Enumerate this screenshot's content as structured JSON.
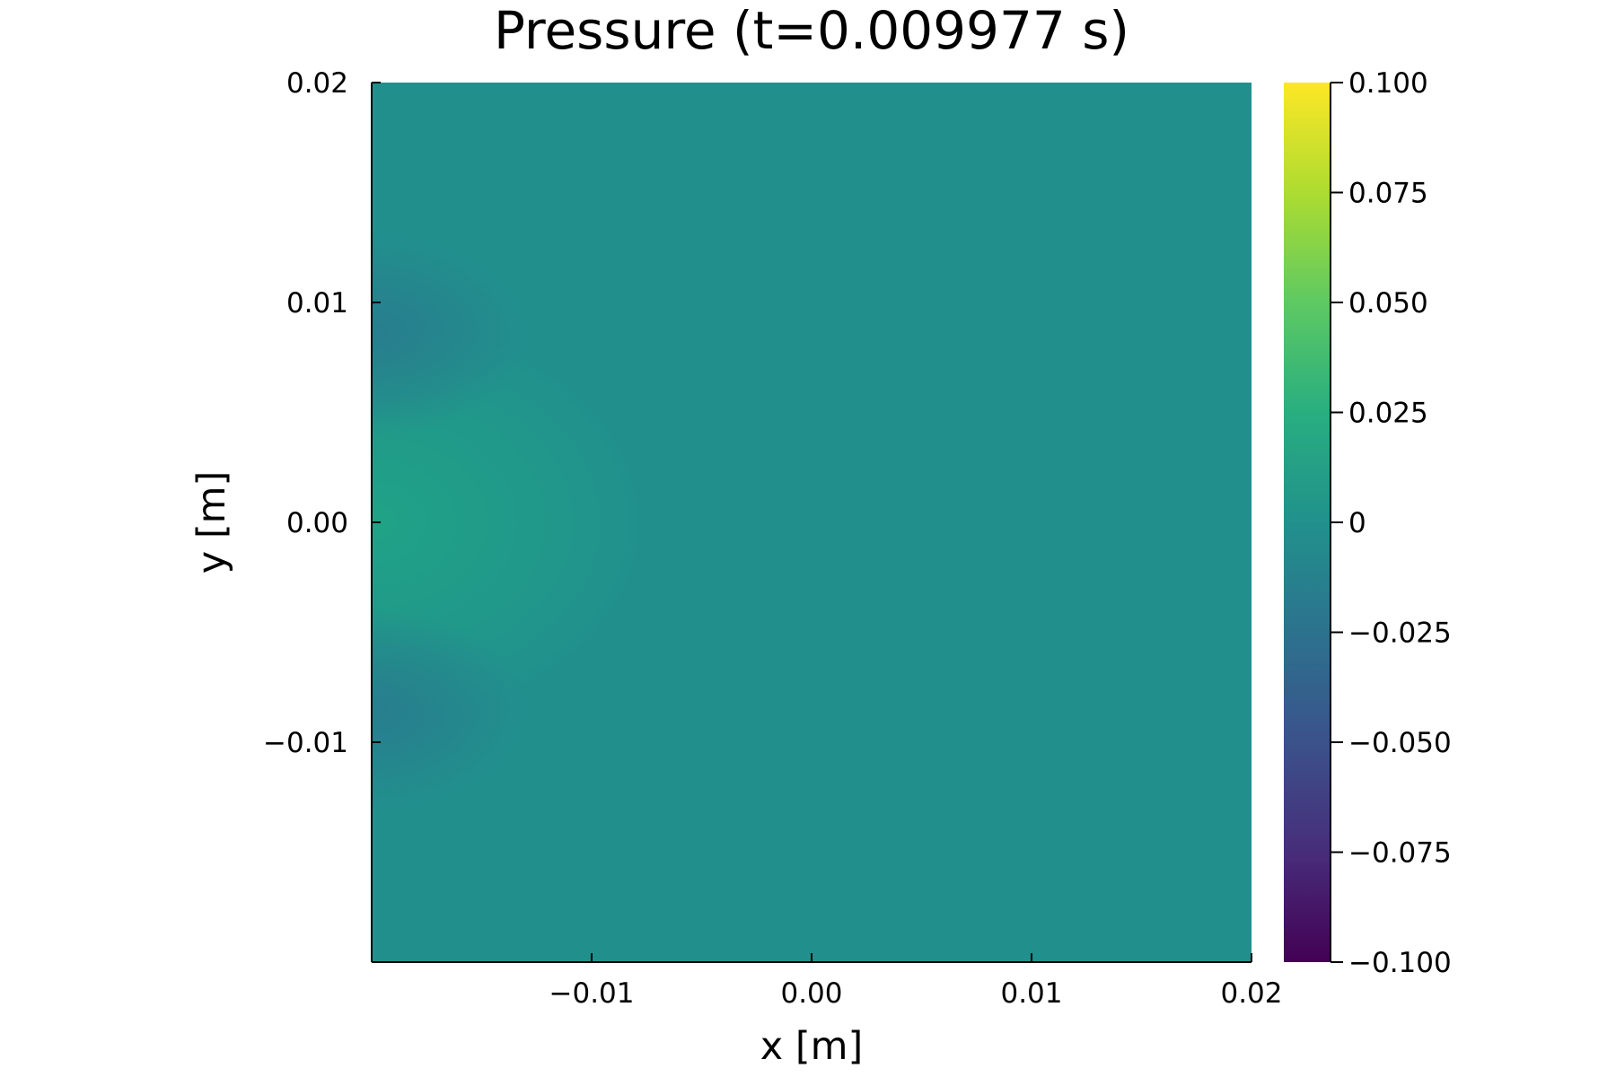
{
  "chart_data": {
    "type": "heatmap",
    "title": "Pressure (t=0.009977 s)",
    "xlabel": "x [m]",
    "ylabel": "y [m]",
    "xlim": [
      -0.02,
      0.02
    ],
    "ylim": [
      -0.02,
      0.02
    ],
    "xticks": [
      {
        "value": -0.01,
        "label": "−0.01"
      },
      {
        "value": 0.0,
        "label": "0.00"
      },
      {
        "value": 0.01,
        "label": "0.01"
      },
      {
        "value": 0.02,
        "label": "0.02"
      }
    ],
    "yticks": [
      {
        "value": -0.01,
        "label": "−0.01"
      },
      {
        "value": 0.0,
        "label": "0.00"
      },
      {
        "value": 0.01,
        "label": "0.01"
      },
      {
        "value": 0.02,
        "label": "0.02"
      }
    ],
    "colorbar": {
      "colormap": "viridis",
      "range": [
        -0.1,
        0.1
      ],
      "ticks": [
        {
          "value": 0.1,
          "label": "0.100"
        },
        {
          "value": 0.075,
          "label": "0.075"
        },
        {
          "value": 0.05,
          "label": "0.050"
        },
        {
          "value": 0.025,
          "label": "0.025"
        },
        {
          "value": 0.0,
          "label": "0"
        },
        {
          "value": -0.025,
          "label": "−0.025"
        },
        {
          "value": -0.05,
          "label": "−0.050"
        },
        {
          "value": -0.075,
          "label": "−0.075"
        },
        {
          "value": -0.1,
          "label": "−0.100"
        }
      ]
    },
    "field": {
      "background_value": 0.0,
      "features": [
        {
          "kind": "positive-lobe",
          "center": [
            -0.02,
            0.0
          ],
          "x_extent": [
            -0.02,
            -0.0075
          ],
          "y_extent": [
            -0.004,
            0.004
          ],
          "peak_value": 0.012
        },
        {
          "kind": "negative-lobe",
          "center": [
            -0.02,
            0.0085
          ],
          "x_extent": [
            -0.02,
            -0.013
          ],
          "y_extent": [
            0.006,
            0.01
          ],
          "peak_value": -0.01
        },
        {
          "kind": "negative-lobe",
          "center": [
            -0.02,
            -0.0085
          ],
          "x_extent": [
            -0.02,
            -0.013
          ],
          "y_extent": [
            -0.01,
            -0.006
          ],
          "peak_value": -0.01
        }
      ]
    },
    "colors": {
      "background": "#21908d",
      "positive": "#20a486",
      "negative": "#297a8e",
      "axis": "#000000"
    }
  }
}
